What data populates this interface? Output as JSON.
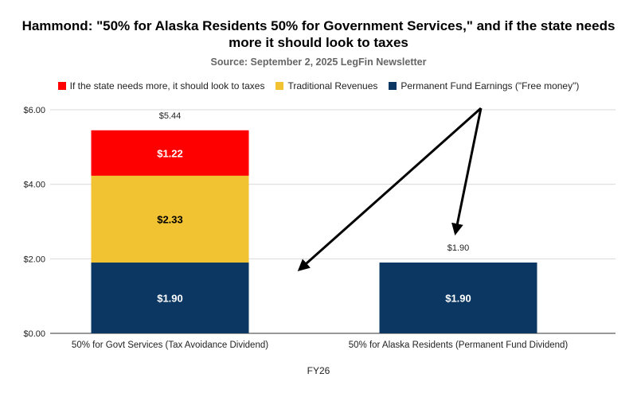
{
  "title_line1": "Hammond: \"50% for Alaska Residents 50% for Government Services,\" and if the state needs",
  "title_line2": "more it should look to taxes",
  "subtitle": "Source: September 2, 2025 LegFin Newsletter",
  "colors": {
    "taxes": "#ff0000",
    "traditional": "#f1c232",
    "pfe": "#0b3762",
    "grid": "#d9d9d9",
    "arrow": "#000000"
  },
  "chart_data": {
    "type": "bar",
    "stacked": true,
    "categories": [
      "50% for Govt Services (Tax Avoidance Dividend)",
      "50% for Alaska Residents (Permanent Fund Dividend)"
    ],
    "series": [
      {
        "name": "Permanent Fund Earnings (\"Free money\")",
        "values": [
          1.9,
          1.9
        ],
        "labels": [
          "$1.90",
          "$1.90"
        ]
      },
      {
        "name": "Traditional Revenues",
        "values": [
          2.33,
          0
        ],
        "labels": [
          "$2.33",
          ""
        ]
      },
      {
        "name": "If the state needs more, it should look to taxes",
        "values": [
          1.22,
          0
        ],
        "labels": [
          "$1.22",
          ""
        ]
      }
    ],
    "totals": [
      "$5.44",
      "$1.90"
    ],
    "total_values": [
      5.44,
      1.9
    ],
    "yticks": [
      "$0.00",
      "$2.00",
      "$4.00",
      "$6.00"
    ],
    "ytick_values": [
      0,
      2,
      4,
      6
    ],
    "ylim": [
      0,
      6
    ],
    "xlabel": "FY26",
    "ylabel": "",
    "legend_position": "top",
    "legend_order": [
      "If the state needs more, it should look to taxes",
      "Traditional Revenues",
      "Permanent Fund Earnings (\"Free money\")"
    ],
    "grid": true,
    "annotations": "two black arrows from a common point pointing to the Permanent Fund Earnings segment of each bar"
  }
}
